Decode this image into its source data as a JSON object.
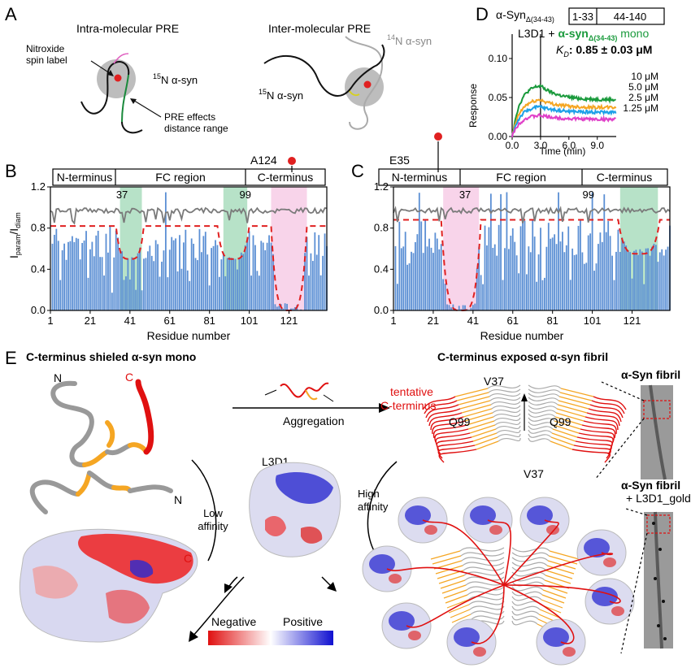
{
  "panels": {
    "A": {
      "letter": "A",
      "intra_title": "Intra-molecular PRE",
      "inter_title": "Inter-molecular PRE",
      "nitroxide_line1": "Nitroxide",
      "nitroxide_line2": "spin label",
      "n15_intra_sup": "15",
      "n15_intra": "N α-syn",
      "pre_line1": "PRE effects",
      "pre_line2": "distance range",
      "n14_sup": "14",
      "n14": "N α-syn",
      "n15_inter_sup": "15",
      "n15_inter": "N α-syn"
    },
    "B": {
      "letter": "B",
      "domains": [
        "N-terminus",
        "FC region",
        "C-terminus"
      ],
      "marker": "A124",
      "marks": [
        "37",
        "99"
      ],
      "ylabel_main": "I",
      "ylabel_sub1": "param",
      "ylabel_sep": "/I",
      "ylabel_sub2": "diam",
      "xlabel": "Residue number"
    },
    "C": {
      "letter": "C",
      "domains": [
        "N-terminus",
        "FC region",
        "C-terminus"
      ],
      "marker": "E35",
      "marks": [
        "37",
        "99"
      ],
      "xlabel": "Residue number"
    },
    "D": {
      "letter": "D",
      "construct": "α-Syn",
      "construct_sub": "Δ(34-43)",
      "segments": [
        "1-33",
        "44-140"
      ],
      "legend_prefix": "L3D1 + ",
      "legend_green": "α-syn",
      "legend_green_sub": "Δ(34-43)",
      "legend_suffix": " mono",
      "kd_label": "K",
      "kd_sub": "D",
      "kd_value": ": 0.85 ± 0.03 μM",
      "ylabel": "Response",
      "xlabel": "Time (min)"
    },
    "E": {
      "letter": "E",
      "left_title": "C-terminus shieled α-syn mono",
      "right_title": "C-terminus exposed α-syn fibril",
      "aggregation": "Aggregation",
      "tentative_line1": "tentative",
      "tentative_line2": "C-terminus",
      "v37_top": "V37",
      "v37_bottom": "V37",
      "q99_left": "Q99",
      "q99_right": "Q99",
      "l3d1": "L3D1",
      "low_line1": "Low",
      "low_line2": "affinity",
      "high_line1": "High",
      "high_line2": "affinity",
      "n_top": "N",
      "n_bottom": "N",
      "c_top": "C",
      "c_bottom": "C",
      "fibril_title1": "α-Syn fibril",
      "fibril_title2": "α-Syn fibril",
      "fibril_sub2": "+ L3D1_gold",
      "negative": "Negative",
      "positive": "Positive"
    }
  },
  "chart_data": [
    {
      "type": "bar",
      "panel": "B",
      "ylabel": "Iparam/Idiam",
      "xlabel": "Residue number",
      "xlim": [
        1,
        140
      ],
      "ylim": [
        0,
        1.2
      ],
      "xticks": [
        1,
        21,
        41,
        61,
        81,
        101,
        121
      ],
      "yticks": [
        0.0,
        0.4,
        0.8,
        1.2
      ],
      "ytick_labels": [
        "0.0",
        "0.4",
        "0.8",
        "1.2"
      ],
      "highlight_regions": [
        {
          "from": 36,
          "to": 47,
          "color": "#9fd8b5"
        },
        {
          "from": 88,
          "to": 100,
          "color": "#9fd8b5"
        },
        {
          "from": 112,
          "to": 130,
          "color": "#f6c6e3"
        }
      ],
      "dip_regions": [
        {
          "from": 34,
          "to": 48,
          "depth": 0.5
        },
        {
          "from": 85,
          "to": 101,
          "depth": 0.5
        },
        {
          "from": 112,
          "to": 130,
          "depth": 0.0
        }
      ],
      "baseline": 0.82,
      "gray_line_level": 0.97
    },
    {
      "type": "bar",
      "panel": "C",
      "xlabel": "Residue number",
      "xlim": [
        1,
        140
      ],
      "ylim": [
        0,
        1.2
      ],
      "xticks": [
        1,
        21,
        41,
        61,
        81,
        101,
        121
      ],
      "yticks": [
        0.0,
        0.4,
        0.8,
        1.2
      ],
      "ytick_labels": [
        "0.0",
        "0.4",
        "0.8",
        "1.2"
      ],
      "highlight_regions": [
        {
          "from": 26,
          "to": 44,
          "color": "#f6c6e3"
        },
        {
          "from": 115,
          "to": 134,
          "color": "#9fd8b5"
        }
      ],
      "dip_regions": [
        {
          "from": 25,
          "to": 45,
          "depth": 0.0
        },
        {
          "from": 114,
          "to": 135,
          "depth": 0.55
        }
      ],
      "baseline": 0.88,
      "gray_line_level": 0.97
    },
    {
      "type": "line",
      "panel": "D",
      "ylabel": "Response",
      "xlabel": "Time (min)",
      "xlim": [
        0,
        11
      ],
      "ylim": [
        0,
        0.1
      ],
      "xticks": [
        0,
        3,
        6,
        9
      ],
      "xtick_labels": [
        "0.0",
        "3.0",
        "6.0",
        "9.0"
      ],
      "yticks": [
        0.0,
        0.05,
        0.1
      ],
      "ytick_labels": [
        "0.00",
        "0.05",
        "0.10"
      ],
      "injection_end": 3,
      "series": [
        {
          "name": "10 μM",
          "color": "#1a9a3c",
          "peak": 0.065,
          "end": 0.047
        },
        {
          "name": "5.0 μM",
          "color": "#f5a623",
          "peak": 0.047,
          "end": 0.037
        },
        {
          "name": "2.5 μM",
          "color": "#1ea0e8",
          "peak": 0.038,
          "end": 0.031
        },
        {
          "name": "1.25 μM",
          "color": "#e040c8",
          "peak": 0.027,
          "end": 0.022
        }
      ]
    }
  ],
  "colors": {
    "bar": "#5b8fd4",
    "dip": "#e02020",
    "gray_line": "#7a7a7a",
    "green_text": "#1a9a3c",
    "red_text": "#e02020",
    "orange": "#f5a623",
    "gray_chain": "#9a9a9a"
  }
}
